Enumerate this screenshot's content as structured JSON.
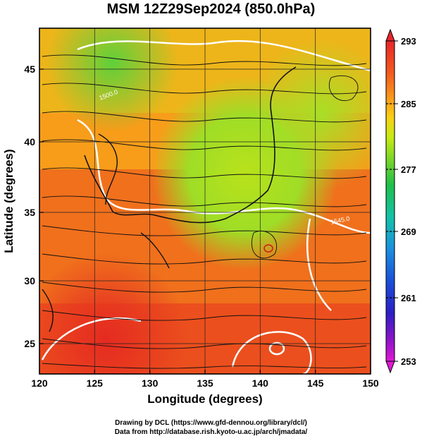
{
  "title": "MSM 12Z29Sep2024 (850.0hPa)",
  "x_axis": {
    "label": "Longitude (degrees)",
    "ticks": [
      "120",
      "125",
      "130",
      "135",
      "140",
      "145",
      "150"
    ]
  },
  "y_axis": {
    "label": "Latitude  (degrees)",
    "ticks": [
      "25",
      "30",
      "35",
      "40",
      "45"
    ]
  },
  "colorbar": {
    "labels": [
      "293",
      "285",
      "277",
      "269",
      "261",
      "253"
    ],
    "colors": [
      "#e8252a",
      "#f35a1e",
      "#fb9a1a",
      "#f7d114",
      "#c7ea14",
      "#6fd32c",
      "#1fbf4a",
      "#13c2a8",
      "#1b8fe0",
      "#1a4fd8",
      "#2c1ec4",
      "#8a13c9",
      "#e018d6"
    ]
  },
  "contour_labels": [
    "1545.0",
    "1500.0"
  ],
  "credits": {
    "line1": "Drawing by DCL (https://www.gfd-dennou.org/library/dcl/)",
    "line2": "Data from http://database.rish.kyoto-u.ac.jp/arch/jmadata/"
  }
}
